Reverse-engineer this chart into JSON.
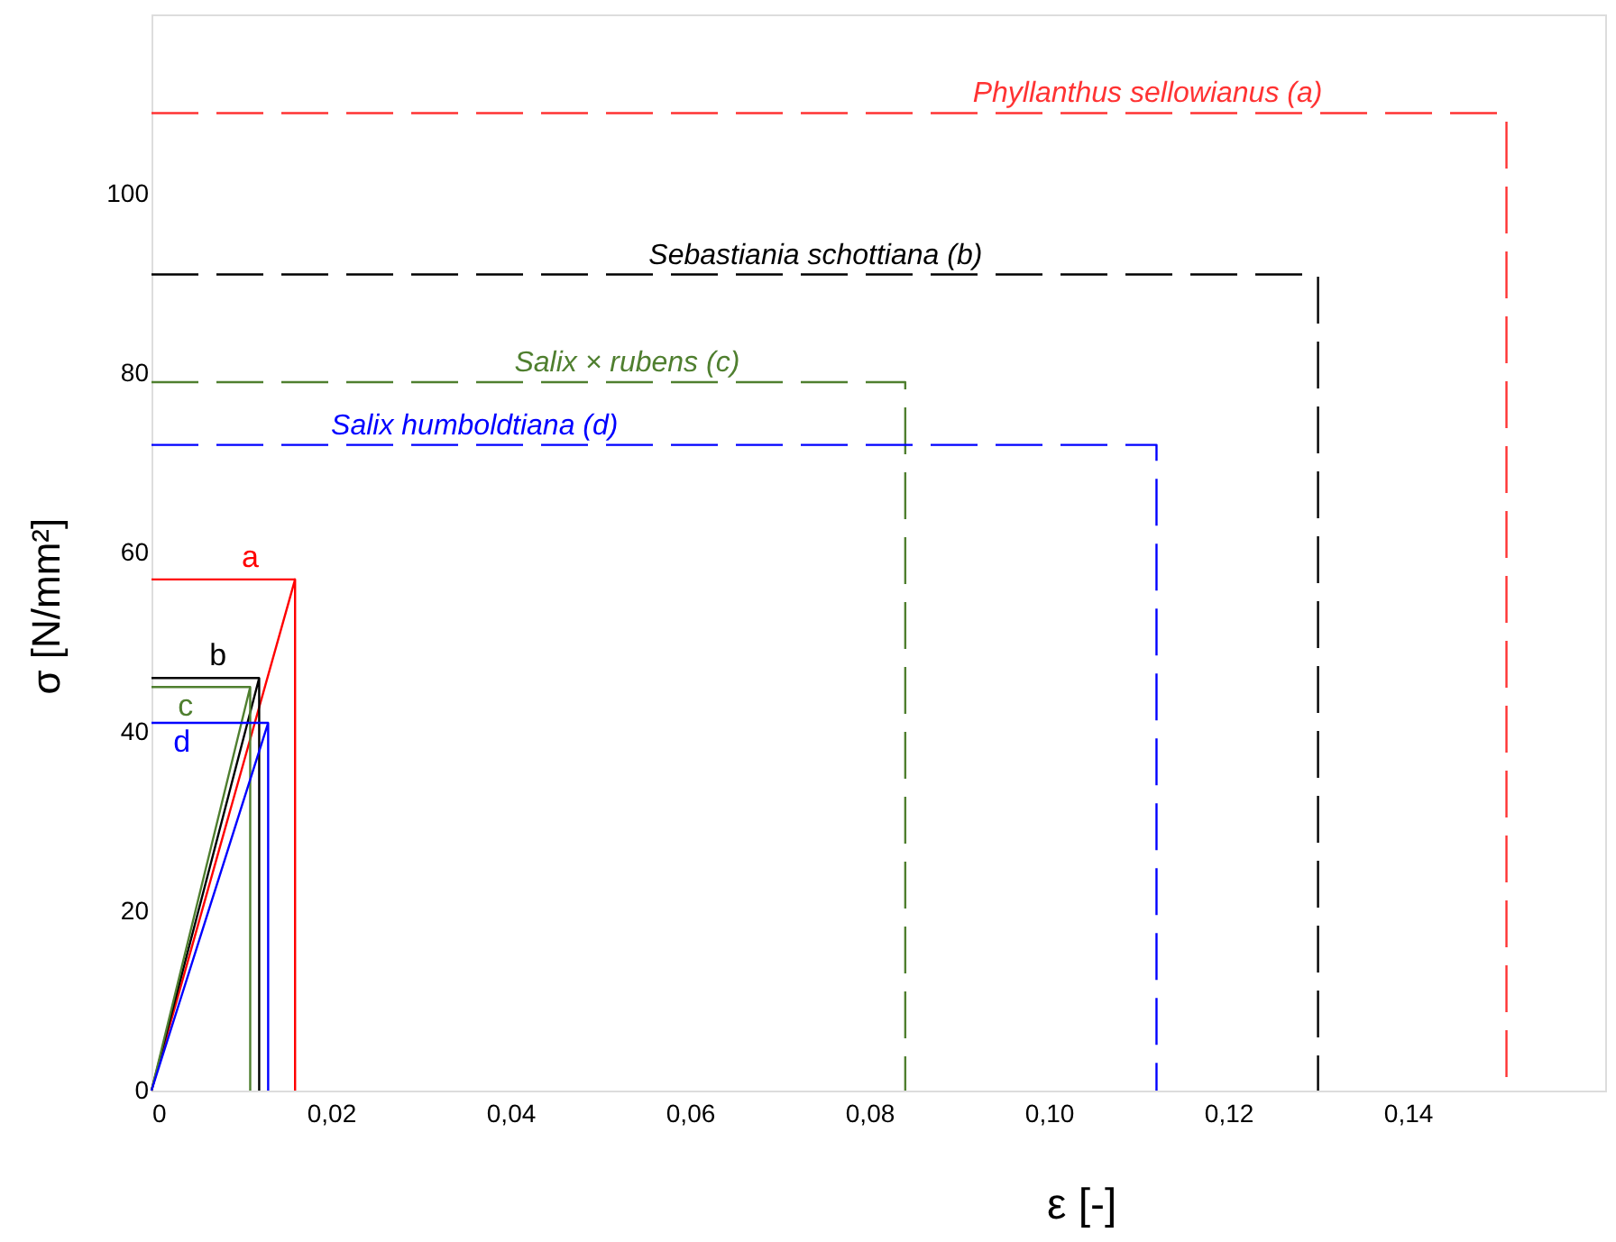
{
  "chart_data": {
    "type": "line",
    "xlabel": "ε [-]",
    "ylabel": "σ [N/mm²]",
    "xlim": [
      0,
      0.162
    ],
    "ylim": [
      0,
      120
    ],
    "xticks": [
      0,
      {
        "value": 0.02,
        "label": "0,02"
      },
      {
        "value": 0.04,
        "label": "0,04"
      },
      {
        "value": 0.06,
        "label": "0,06"
      },
      {
        "value": 0.08,
        "label": "0,08"
      },
      {
        "value": 0.1,
        "label": "0,10"
      },
      {
        "value": 0.12,
        "label": "0,12"
      },
      {
        "value": 0.14,
        "label": "0,14"
      }
    ],
    "yticks": [
      0,
      20,
      40,
      60,
      80,
      100
    ],
    "grid": false,
    "marker": "none",
    "series": [
      {
        "color": "#ff3333",
        "line_style": "dashed",
        "x": [
          0,
          0.151,
          0.151
        ],
        "values": [
          109,
          109,
          0
        ]
      },
      {
        "color": "#000000",
        "line_style": "dashed",
        "x": [
          0,
          0.13,
          0.13
        ],
        "values": [
          91,
          91,
          0
        ]
      },
      {
        "color": "#4f7f2f",
        "line_style": "dashed",
        "x": [
          0,
          0.084,
          0.084
        ],
        "values": [
          79,
          79,
          0
        ]
      },
      {
        "color": "#0000ff",
        "line_style": "dashed",
        "x": [
          0,
          0.112,
          0.112
        ],
        "values": [
          72,
          72,
          0
        ]
      },
      {
        "color": "#ff0000",
        "line_style": "solid",
        "x": [
          0,
          0.016,
          0.016
        ],
        "values": [
          0,
          57,
          0
        ]
      },
      {
        "color": "#000000",
        "line_style": "solid",
        "x": [
          0,
          0.012,
          0.012
        ],
        "values": [
          0,
          46,
          0
        ]
      },
      {
        "color": "#4f7f2f",
        "line_style": "solid",
        "x": [
          0,
          0.011,
          0.011
        ],
        "values": [
          0,
          45,
          0
        ]
      },
      {
        "color": "#0000ff",
        "line_style": "solid",
        "x": [
          0,
          0.013,
          0.013
        ],
        "values": [
          0,
          41,
          0
        ]
      },
      {
        "color": "#ff0000",
        "line_style": "solid",
        "x": [
          0,
          0.016
        ],
        "values": [
          57,
          57
        ]
      },
      {
        "color": "#000000",
        "line_style": "solid",
        "x": [
          0,
          0.012
        ],
        "values": [
          46,
          46
        ]
      },
      {
        "color": "#4f7f2f",
        "line_style": "solid",
        "x": [
          0,
          0.011
        ],
        "values": [
          45,
          45
        ]
      },
      {
        "color": "#0000ff",
        "line_style": "solid",
        "x": [
          0,
          0.013
        ],
        "values": [
          41,
          41
        ]
      }
    ],
    "annotations": [
      {
        "text": "Phyllanthus sellowianus (a)",
        "x": 0.111,
        "y": 109
      },
      {
        "text": "Sebastiania schottiana (b)",
        "x": 0.074,
        "y": 91
      },
      {
        "text": "Salix × rubens (c)",
        "x": 0.053,
        "y": 79
      },
      {
        "text": "Salix humboldtiana (d)",
        "x": 0.036,
        "y": 72
      },
      {
        "text": "a",
        "x": 0.011,
        "y": 57
      },
      {
        "text": "b",
        "x": 0.0074,
        "y": 46
      },
      {
        "text": "c",
        "x": 0.0038,
        "y": 45
      },
      {
        "text": "d",
        "x": 0.0034,
        "y": 41
      }
    ]
  }
}
